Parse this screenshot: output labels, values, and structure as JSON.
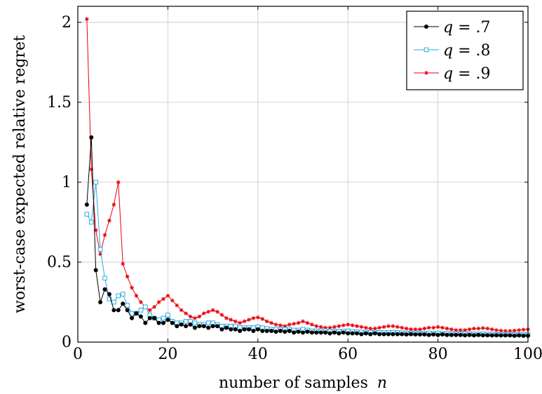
{
  "chart_data": {
    "type": "line",
    "xlabel": "number of samples",
    "xlabel_var": "n",
    "ylabel": "worst-case expected relative regret",
    "xlim": [
      0,
      100
    ],
    "ylim": [
      0,
      2.1
    ],
    "xticks": [
      0,
      20,
      40,
      60,
      80,
      100
    ],
    "yticks": [
      0,
      0.5,
      1,
      1.5,
      2
    ],
    "ytick_labels": [
      "0",
      "0.5",
      "1",
      "1.5",
      "2"
    ],
    "grid": true,
    "legend_position": "top-right",
    "series": [
      {
        "name": "q = .7",
        "legend_var": "q",
        "legend_value": ".7",
        "color": "#000000",
        "marker": "circle",
        "x": [
          2,
          3,
          4,
          5,
          6,
          7,
          8,
          9,
          10,
          11,
          12,
          13,
          14,
          15,
          16,
          17,
          18,
          19,
          20,
          21,
          22,
          23,
          24,
          25,
          26,
          27,
          28,
          29,
          30,
          31,
          32,
          33,
          34,
          35,
          36,
          37,
          38,
          39,
          40,
          41,
          42,
          43,
          44,
          45,
          46,
          47,
          48,
          49,
          50,
          51,
          52,
          53,
          54,
          55,
          56,
          57,
          58,
          59,
          60,
          61,
          62,
          63,
          64,
          65,
          66,
          67,
          68,
          69,
          70,
          71,
          72,
          73,
          74,
          75,
          76,
          77,
          78,
          79,
          80,
          81,
          82,
          83,
          84,
          85,
          86,
          87,
          88,
          89,
          90,
          91,
          92,
          93,
          94,
          95,
          96,
          97,
          98,
          99,
          100
        ],
        "values": [
          0.86,
          1.28,
          0.45,
          0.25,
          0.33,
          0.3,
          0.2,
          0.2,
          0.24,
          0.2,
          0.15,
          0.18,
          0.16,
          0.12,
          0.15,
          0.15,
          0.12,
          0.12,
          0.14,
          0.12,
          0.1,
          0.11,
          0.1,
          0.11,
          0.09,
          0.1,
          0.1,
          0.09,
          0.1,
          0.1,
          0.08,
          0.09,
          0.08,
          0.08,
          0.07,
          0.08,
          0.08,
          0.07,
          0.08,
          0.07,
          0.07,
          0.07,
          0.065,
          0.07,
          0.065,
          0.07,
          0.06,
          0.065,
          0.06,
          0.065,
          0.06,
          0.06,
          0.06,
          0.06,
          0.055,
          0.06,
          0.055,
          0.06,
          0.055,
          0.055,
          0.055,
          0.05,
          0.055,
          0.05,
          0.055,
          0.05,
          0.05,
          0.05,
          0.05,
          0.05,
          0.05,
          0.048,
          0.05,
          0.048,
          0.048,
          0.048,
          0.045,
          0.048,
          0.045,
          0.048,
          0.045,
          0.045,
          0.045,
          0.045,
          0.043,
          0.045,
          0.043,
          0.045,
          0.043,
          0.043,
          0.042,
          0.043,
          0.042,
          0.042,
          0.042,
          0.04,
          0.042,
          0.04,
          0.04
        ]
      },
      {
        "name": "q = .8",
        "legend_var": "q",
        "legend_value": ".8",
        "color": "#29abe2",
        "marker": "square",
        "x": [
          2,
          3,
          4,
          5,
          6,
          7,
          8,
          9,
          10,
          11,
          12,
          13,
          14,
          15,
          16,
          17,
          18,
          19,
          20,
          21,
          22,
          23,
          24,
          25,
          26,
          27,
          28,
          29,
          30,
          31,
          32,
          33,
          34,
          35,
          36,
          37,
          38,
          39,
          40,
          41,
          42,
          43,
          44,
          45,
          46,
          47,
          48,
          49,
          50,
          51,
          52,
          53,
          54,
          55,
          56,
          57,
          58,
          59,
          60,
          61,
          62,
          63,
          64,
          65,
          66,
          67,
          68,
          69,
          70,
          71,
          72,
          73,
          74,
          75,
          76,
          77,
          78,
          79,
          80,
          81,
          82,
          83,
          84,
          85,
          86,
          87,
          88,
          89,
          90,
          91,
          92,
          93,
          94,
          95,
          96,
          97,
          98,
          99,
          100
        ],
        "values": [
          0.8,
          0.75,
          1.0,
          0.58,
          0.4,
          0.27,
          0.25,
          0.29,
          0.3,
          0.23,
          0.18,
          0.18,
          0.2,
          0.22,
          0.17,
          0.15,
          0.14,
          0.15,
          0.17,
          0.13,
          0.12,
          0.12,
          0.13,
          0.13,
          0.12,
          0.11,
          0.11,
          0.12,
          0.12,
          0.11,
          0.1,
          0.1,
          0.1,
          0.1,
          0.09,
          0.09,
          0.09,
          0.09,
          0.095,
          0.09,
          0.085,
          0.08,
          0.08,
          0.08,
          0.08,
          0.08,
          0.075,
          0.075,
          0.08,
          0.075,
          0.07,
          0.07,
          0.07,
          0.07,
          0.068,
          0.068,
          0.068,
          0.068,
          0.07,
          0.066,
          0.064,
          0.062,
          0.062,
          0.062,
          0.062,
          0.06,
          0.06,
          0.06,
          0.062,
          0.06,
          0.058,
          0.056,
          0.056,
          0.056,
          0.056,
          0.055,
          0.055,
          0.055,
          0.056,
          0.054,
          0.053,
          0.052,
          0.052,
          0.052,
          0.052,
          0.051,
          0.05,
          0.05,
          0.052,
          0.05,
          0.049,
          0.048,
          0.048,
          0.048,
          0.048,
          0.047,
          0.047,
          0.047,
          0.048
        ]
      },
      {
        "name": "q = .9",
        "legend_var": "q",
        "legend_value": ".9",
        "color": "#e8000b",
        "marker": "star",
        "x": [
          2,
          3,
          4,
          5,
          6,
          7,
          8,
          9,
          10,
          11,
          12,
          13,
          14,
          15,
          16,
          17,
          18,
          19,
          20,
          21,
          22,
          23,
          24,
          25,
          26,
          27,
          28,
          29,
          30,
          31,
          32,
          33,
          34,
          35,
          36,
          37,
          38,
          39,
          40,
          41,
          42,
          43,
          44,
          45,
          46,
          47,
          48,
          49,
          50,
          51,
          52,
          53,
          54,
          55,
          56,
          57,
          58,
          59,
          60,
          61,
          62,
          63,
          64,
          65,
          66,
          67,
          68,
          69,
          70,
          71,
          72,
          73,
          74,
          75,
          76,
          77,
          78,
          79,
          80,
          81,
          82,
          83,
          84,
          85,
          86,
          87,
          88,
          89,
          90,
          91,
          92,
          93,
          94,
          95,
          96,
          97,
          98,
          99,
          100
        ],
        "values": [
          2.02,
          1.08,
          0.7,
          0.55,
          0.67,
          0.76,
          0.86,
          1.0,
          0.49,
          0.41,
          0.34,
          0.29,
          0.25,
          0.22,
          0.2,
          0.22,
          0.25,
          0.27,
          0.29,
          0.26,
          0.23,
          0.2,
          0.18,
          0.16,
          0.15,
          0.16,
          0.18,
          0.19,
          0.2,
          0.19,
          0.17,
          0.15,
          0.14,
          0.13,
          0.12,
          0.13,
          0.14,
          0.15,
          0.155,
          0.145,
          0.13,
          0.12,
          0.11,
          0.105,
          0.1,
          0.11,
          0.115,
          0.12,
          0.13,
          0.12,
          0.11,
          0.1,
          0.095,
          0.09,
          0.09,
          0.095,
          0.1,
          0.105,
          0.11,
          0.105,
          0.1,
          0.095,
          0.09,
          0.085,
          0.085,
          0.09,
          0.095,
          0.1,
          0.1,
          0.095,
          0.09,
          0.085,
          0.08,
          0.08,
          0.08,
          0.085,
          0.09,
          0.09,
          0.095,
          0.09,
          0.085,
          0.08,
          0.075,
          0.075,
          0.075,
          0.08,
          0.085,
          0.085,
          0.088,
          0.085,
          0.08,
          0.075,
          0.072,
          0.07,
          0.07,
          0.072,
          0.075,
          0.078,
          0.08
        ]
      }
    ]
  }
}
